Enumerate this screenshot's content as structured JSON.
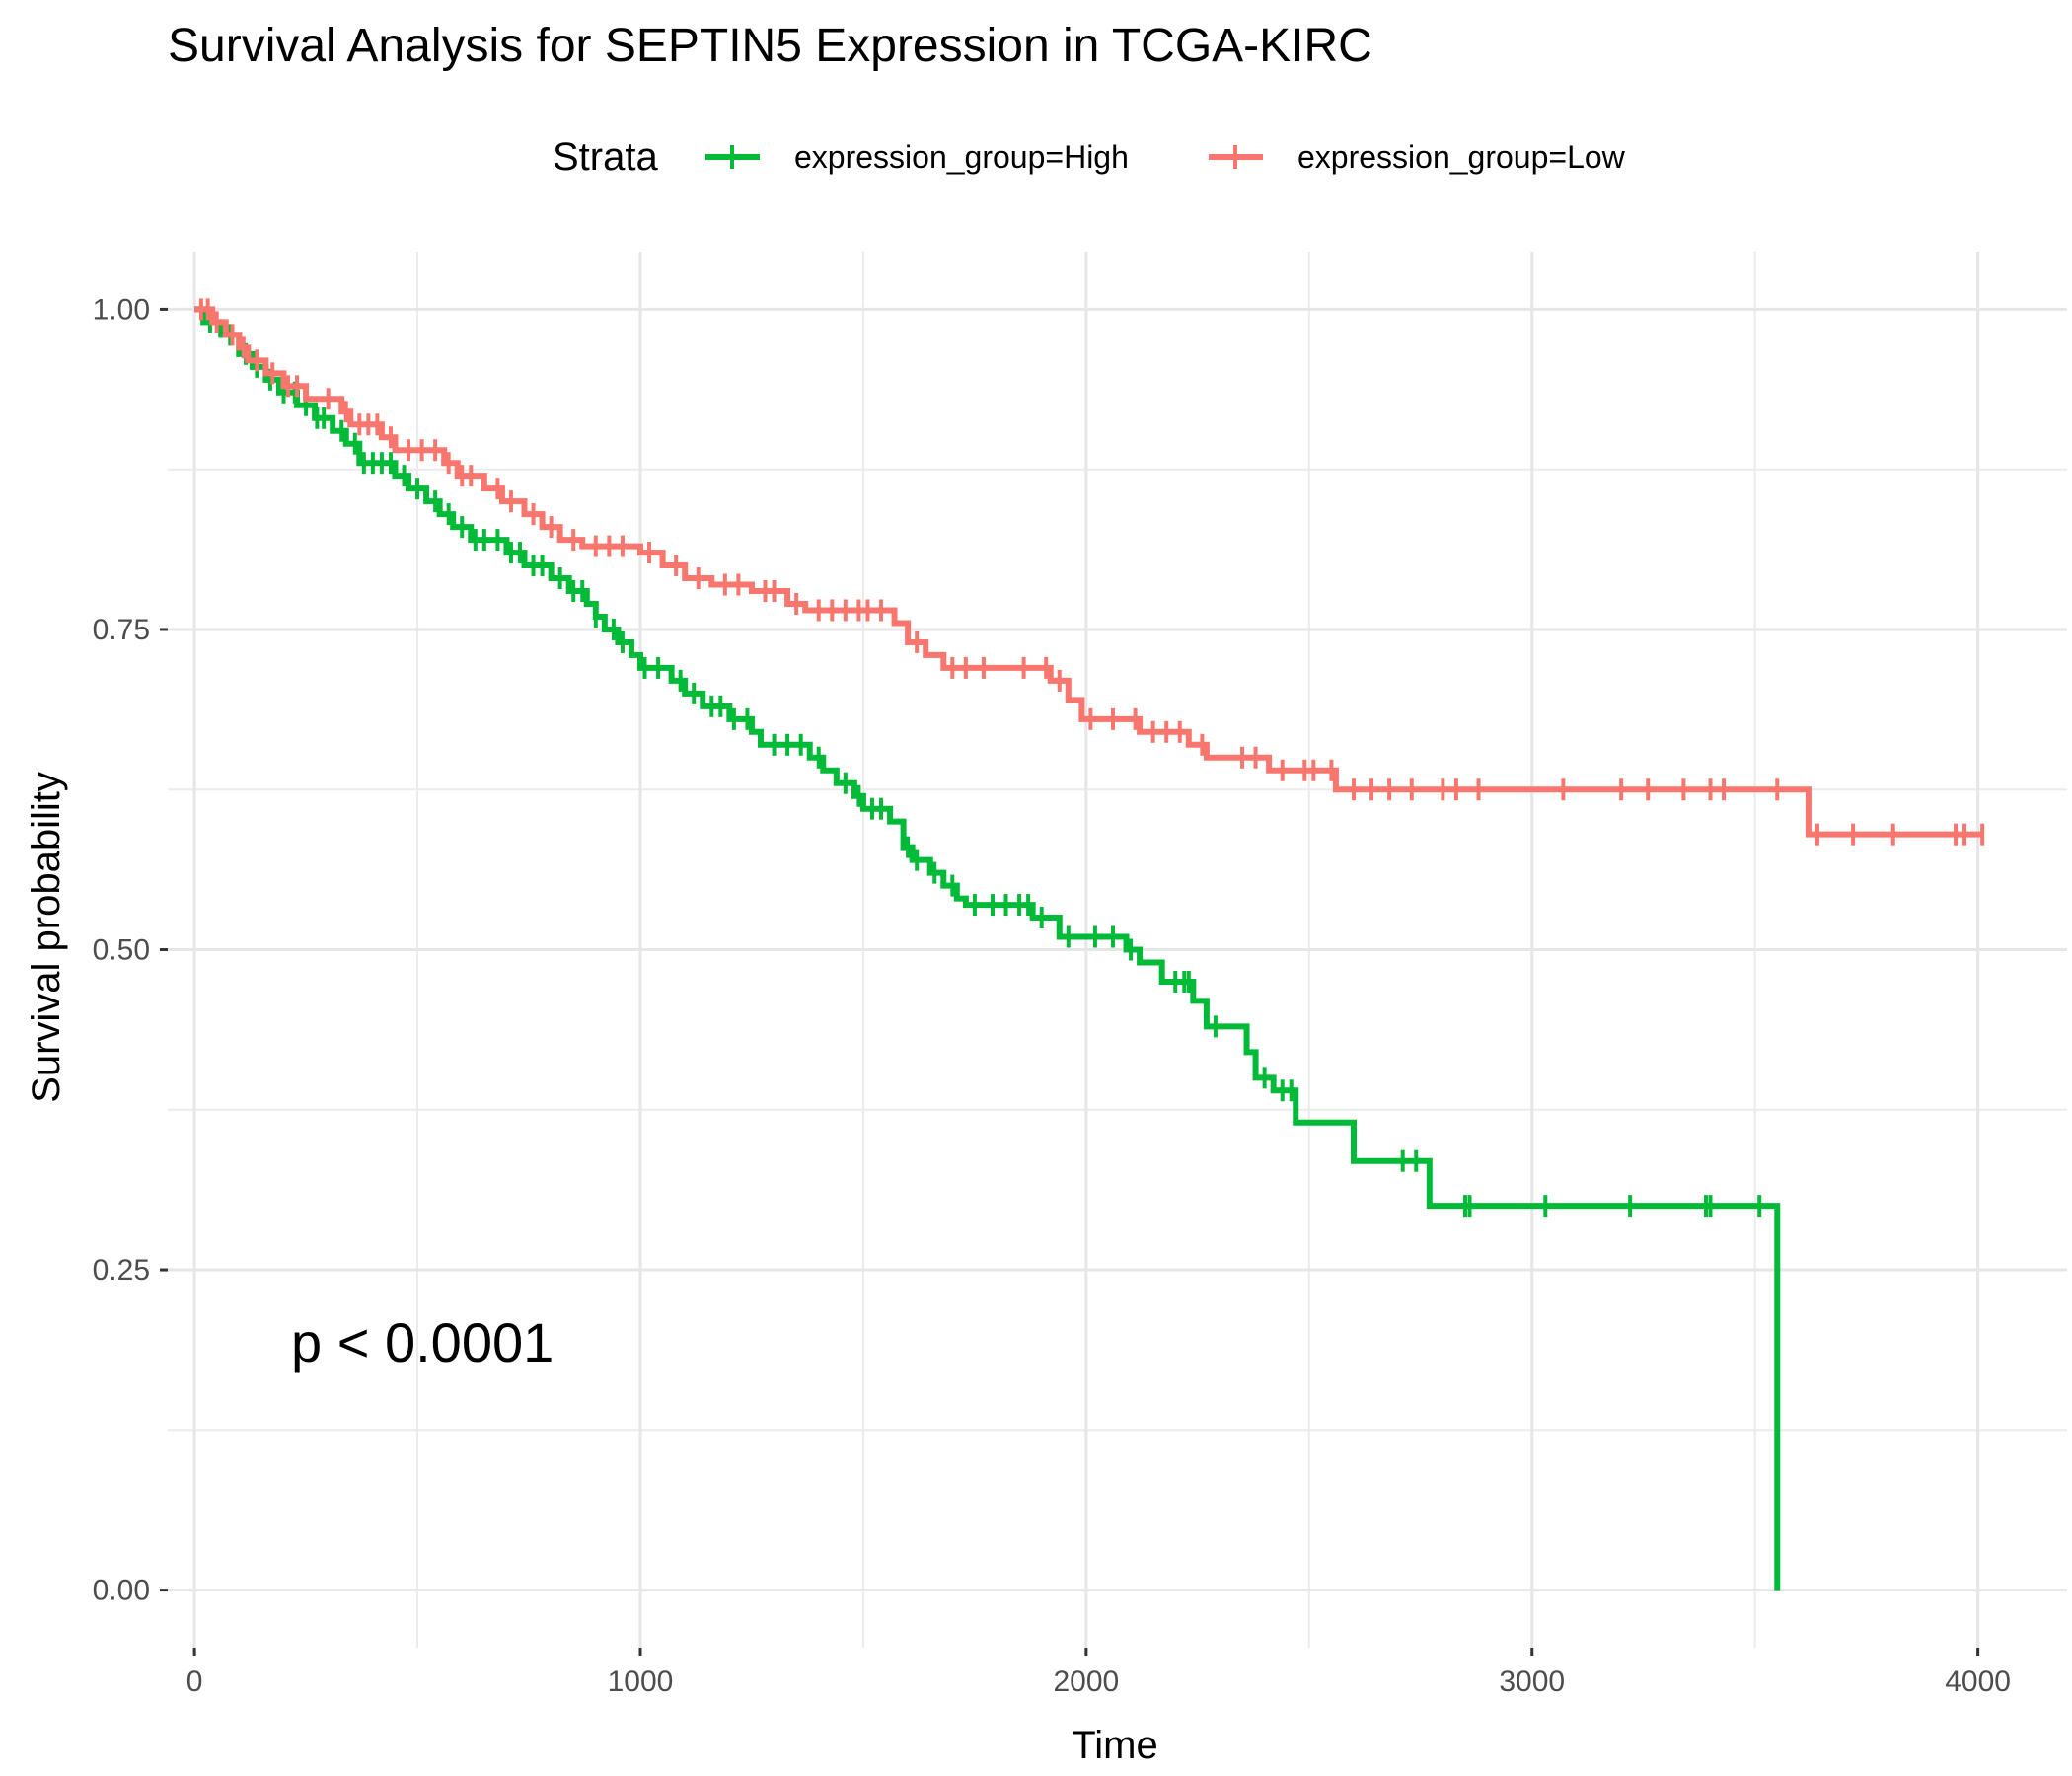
{
  "chart_data": {
    "type": "line",
    "title": "Survival Analysis for SEPTIN5 Expression in TCGA-KIRC",
    "xlabel": "Time",
    "ylabel": "Survival probability",
    "xlim": [
      -60,
      4200
    ],
    "ylim": [
      -0.045,
      1.045
    ],
    "x_ticks": [
      0,
      1000,
      2000,
      3000,
      4000
    ],
    "y_ticks": [
      0,
      0.25,
      0.5,
      0.75,
      1.0
    ],
    "x_tick_labels": [
      "0",
      "1000",
      "2000",
      "3000",
      "4000"
    ],
    "y_tick_labels": [
      "0.00",
      "0.25",
      "0.50",
      "0.75",
      "1.00"
    ],
    "grid": true,
    "legend": {
      "title": "Strata",
      "placement": "top"
    },
    "annotation": "p < 0.0001",
    "series": [
      {
        "name": "expression_group=High",
        "color": "#00BA38",
        "steps": [
          [
            0,
            1.0
          ],
          [
            20,
            0.99
          ],
          [
            60,
            0.98
          ],
          [
            100,
            0.965
          ],
          [
            130,
            0.955
          ],
          [
            160,
            0.945
          ],
          [
            190,
            0.935
          ],
          [
            230,
            0.925
          ],
          [
            270,
            0.915
          ],
          [
            310,
            0.905
          ],
          [
            340,
            0.895
          ],
          [
            370,
            0.88
          ],
          [
            450,
            0.87
          ],
          [
            480,
            0.86
          ],
          [
            520,
            0.85
          ],
          [
            550,
            0.84
          ],
          [
            580,
            0.83
          ],
          [
            620,
            0.82
          ],
          [
            700,
            0.81
          ],
          [
            740,
            0.8
          ],
          [
            800,
            0.79
          ],
          [
            840,
            0.78
          ],
          [
            880,
            0.77
          ],
          [
            900,
            0.76
          ],
          [
            920,
            0.75
          ],
          [
            950,
            0.74
          ],
          [
            980,
            0.73
          ],
          [
            1000,
            0.72
          ],
          [
            1070,
            0.71
          ],
          [
            1100,
            0.7
          ],
          [
            1140,
            0.69
          ],
          [
            1200,
            0.68
          ],
          [
            1250,
            0.67
          ],
          [
            1270,
            0.66
          ],
          [
            1380,
            0.65
          ],
          [
            1410,
            0.64
          ],
          [
            1440,
            0.63
          ],
          [
            1480,
            0.62
          ],
          [
            1500,
            0.61
          ],
          [
            1560,
            0.6
          ],
          [
            1590,
            0.58
          ],
          [
            1610,
            0.57
          ],
          [
            1650,
            0.56
          ],
          [
            1680,
            0.55
          ],
          [
            1710,
            0.54
          ],
          [
            1730,
            0.535
          ],
          [
            1880,
            0.525
          ],
          [
            1940,
            0.51
          ],
          [
            2090,
            0.5
          ],
          [
            2120,
            0.49
          ],
          [
            2170,
            0.475
          ],
          [
            2240,
            0.46
          ],
          [
            2270,
            0.44
          ],
          [
            2360,
            0.42
          ],
          [
            2380,
            0.4
          ],
          [
            2420,
            0.39
          ],
          [
            2470,
            0.365
          ],
          [
            2600,
            0.335
          ],
          [
            2770,
            0.3
          ],
          [
            3550,
            0.0
          ]
        ],
        "censor_times": [
          35,
          80,
          115,
          140,
          170,
          200,
          225,
          250,
          275,
          290,
          330,
          360,
          380,
          400,
          420,
          440,
          470,
          500,
          540,
          570,
          600,
          630,
          650,
          680,
          710,
          730,
          760,
          780,
          820,
          850,
          870,
          900,
          940,
          960,
          1010,
          1040,
          1090,
          1120,
          1160,
          1180,
          1210,
          1240,
          1300,
          1330,
          1360,
          1400,
          1460,
          1490,
          1520,
          1540,
          1600,
          1620,
          1660,
          1700,
          1750,
          1790,
          1820,
          1850,
          1870,
          1900,
          1960,
          2020,
          2060,
          2100,
          2200,
          2220,
          2230,
          2290,
          2400,
          2440,
          2460,
          2710,
          2740,
          2850,
          2860,
          3030,
          3220,
          3390,
          3400,
          3510
        ]
      },
      {
        "name": "expression_group=Low",
        "color": "#F8766D",
        "steps": [
          [
            0,
            1.0
          ],
          [
            40,
            0.99
          ],
          [
            70,
            0.98
          ],
          [
            100,
            0.97
          ],
          [
            120,
            0.96
          ],
          [
            160,
            0.95
          ],
          [
            200,
            0.94
          ],
          [
            250,
            0.93
          ],
          [
            330,
            0.92
          ],
          [
            350,
            0.91
          ],
          [
            420,
            0.9
          ],
          [
            450,
            0.89
          ],
          [
            560,
            0.88
          ],
          [
            590,
            0.87
          ],
          [
            650,
            0.86
          ],
          [
            690,
            0.85
          ],
          [
            740,
            0.84
          ],
          [
            780,
            0.83
          ],
          [
            820,
            0.82
          ],
          [
            870,
            0.815
          ],
          [
            1000,
            0.81
          ],
          [
            1050,
            0.8
          ],
          [
            1100,
            0.79
          ],
          [
            1160,
            0.785
          ],
          [
            1250,
            0.78
          ],
          [
            1330,
            0.77
          ],
          [
            1370,
            0.765
          ],
          [
            1570,
            0.755
          ],
          [
            1600,
            0.74
          ],
          [
            1640,
            0.73
          ],
          [
            1680,
            0.72
          ],
          [
            1920,
            0.71
          ],
          [
            1960,
            0.695
          ],
          [
            1990,
            0.68
          ],
          [
            2120,
            0.67
          ],
          [
            2230,
            0.66
          ],
          [
            2270,
            0.65
          ],
          [
            2410,
            0.64
          ],
          [
            2560,
            0.625
          ],
          [
            3620,
            0.59
          ]
        ],
        "censor_times": [
          15,
          30,
          50,
          85,
          110,
          140,
          175,
          210,
          230,
          300,
          340,
          370,
          390,
          410,
          440,
          480,
          510,
          540,
          570,
          600,
          620,
          680,
          710,
          760,
          800,
          850,
          900,
          930,
          960,
          1020,
          1080,
          1130,
          1190,
          1220,
          1280,
          1300,
          1350,
          1400,
          1430,
          1460,
          1490,
          1510,
          1540,
          1620,
          1700,
          1730,
          1770,
          1860,
          1910,
          1940,
          2010,
          2060,
          2110,
          2150,
          2180,
          2210,
          2260,
          2350,
          2380,
          2440,
          2490,
          2510,
          2550,
          2600,
          2640,
          2680,
          2730,
          2800,
          2830,
          2880,
          3070,
          3200,
          3260,
          3340,
          3400,
          3430,
          3550,
          3640,
          3720,
          3810,
          3950,
          3970,
          4010
        ]
      }
    ]
  }
}
